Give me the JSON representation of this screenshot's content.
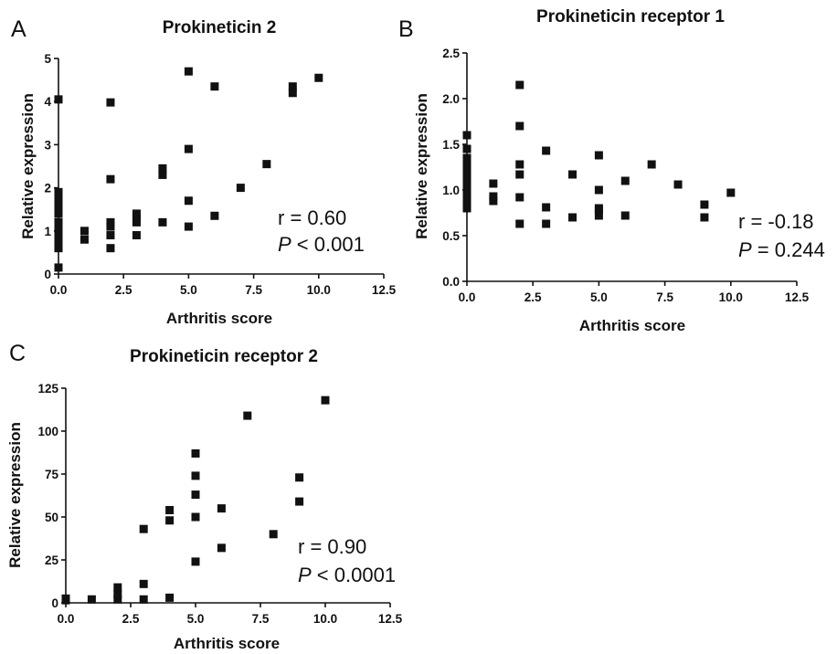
{
  "chart_data": [
    {
      "type": "scatter",
      "panel_letter": "A",
      "title": "Prokineticin 2",
      "xlabel": "Arthritis score",
      "ylabel": "Relative expression",
      "xlim": [
        0,
        12.5
      ],
      "ylim": [
        0,
        5
      ],
      "xticks": [
        "0.0",
        "2.5",
        "5.0",
        "7.5",
        "10.0",
        "12.5"
      ],
      "yticks": [
        "0",
        "1",
        "2",
        "3",
        "4",
        "5"
      ],
      "grid": false,
      "stats": {
        "r": "r = 0.60",
        "p_symbol": "P",
        "p_rest": " < 0.001"
      },
      "points": [
        {
          "x": 0,
          "y": 0.15
        },
        {
          "x": 0,
          "y": 0.6
        },
        {
          "x": 0,
          "y": 0.7
        },
        {
          "x": 0,
          "y": 0.8
        },
        {
          "x": 0,
          "y": 0.9
        },
        {
          "x": 0,
          "y": 1.0
        },
        {
          "x": 0,
          "y": 1.1
        },
        {
          "x": 0,
          "y": 1.2
        },
        {
          "x": 0,
          "y": 1.4
        },
        {
          "x": 0,
          "y": 1.5
        },
        {
          "x": 0,
          "y": 1.6
        },
        {
          "x": 0,
          "y": 1.7
        },
        {
          "x": 0,
          "y": 1.8
        },
        {
          "x": 0,
          "y": 1.9
        },
        {
          "x": 0,
          "y": 4.05
        },
        {
          "x": 1,
          "y": 0.8
        },
        {
          "x": 1,
          "y": 1.0
        },
        {
          "x": 2,
          "y": 0.6
        },
        {
          "x": 2,
          "y": 0.9
        },
        {
          "x": 2,
          "y": 1.1
        },
        {
          "x": 2,
          "y": 1.2
        },
        {
          "x": 2,
          "y": 2.2
        },
        {
          "x": 2,
          "y": 3.98
        },
        {
          "x": 3,
          "y": 0.9
        },
        {
          "x": 3,
          "y": 1.2
        },
        {
          "x": 3,
          "y": 1.3
        },
        {
          "x": 3,
          "y": 1.4
        },
        {
          "x": 4,
          "y": 1.2
        },
        {
          "x": 4,
          "y": 2.3
        },
        {
          "x": 4,
          "y": 2.45
        },
        {
          "x": 5,
          "y": 1.1
        },
        {
          "x": 5,
          "y": 1.7
        },
        {
          "x": 5,
          "y": 2.9
        },
        {
          "x": 5,
          "y": 4.7
        },
        {
          "x": 6,
          "y": 1.35
        },
        {
          "x": 6,
          "y": 4.35
        },
        {
          "x": 7,
          "y": 2.0
        },
        {
          "x": 8,
          "y": 2.55
        },
        {
          "x": 9,
          "y": 4.2
        },
        {
          "x": 9,
          "y": 4.35
        },
        {
          "x": 10,
          "y": 4.55
        }
      ]
    },
    {
      "type": "scatter",
      "panel_letter": "B",
      "title": "Prokineticin receptor 1",
      "xlabel": "Arthritis score",
      "ylabel": "Relative expression",
      "xlim": [
        0,
        12.5
      ],
      "ylim": [
        0,
        2.5
      ],
      "xticks": [
        "0.0",
        "2.5",
        "5.0",
        "7.5",
        "10.0",
        "12.5"
      ],
      "yticks": [
        "0.0",
        "0.5",
        "1.0",
        "1.5",
        "2.0",
        "2.5"
      ],
      "grid": false,
      "stats": {
        "r": "r = -0.18",
        "p_symbol": "P",
        "p_rest": " = 0.244"
      },
      "points": [
        {
          "x": 0,
          "y": 0.8
        },
        {
          "x": 0,
          "y": 0.85
        },
        {
          "x": 0,
          "y": 0.9
        },
        {
          "x": 0,
          "y": 0.95
        },
        {
          "x": 0,
          "y": 1.0
        },
        {
          "x": 0,
          "y": 1.05
        },
        {
          "x": 0,
          "y": 1.1
        },
        {
          "x": 0,
          "y": 1.15
        },
        {
          "x": 0,
          "y": 1.2
        },
        {
          "x": 0,
          "y": 1.25
        },
        {
          "x": 0,
          "y": 1.3
        },
        {
          "x": 0,
          "y": 1.35
        },
        {
          "x": 0,
          "y": 1.45
        },
        {
          "x": 0,
          "y": 1.6
        },
        {
          "x": 1,
          "y": 0.88
        },
        {
          "x": 1,
          "y": 0.93
        },
        {
          "x": 1,
          "y": 1.07
        },
        {
          "x": 2,
          "y": 0.63
        },
        {
          "x": 2,
          "y": 0.92
        },
        {
          "x": 2,
          "y": 1.17
        },
        {
          "x": 2,
          "y": 1.28
        },
        {
          "x": 2,
          "y": 1.7
        },
        {
          "x": 2,
          "y": 2.15
        },
        {
          "x": 3,
          "y": 0.63
        },
        {
          "x": 3,
          "y": 0.81
        },
        {
          "x": 3,
          "y": 1.43
        },
        {
          "x": 4,
          "y": 0.7
        },
        {
          "x": 4,
          "y": 1.17
        },
        {
          "x": 5,
          "y": 0.72
        },
        {
          "x": 5,
          "y": 0.78
        },
        {
          "x": 5,
          "y": 0.8
        },
        {
          "x": 5,
          "y": 1.0
        },
        {
          "x": 5,
          "y": 1.38
        },
        {
          "x": 6,
          "y": 0.72
        },
        {
          "x": 6,
          "y": 1.1
        },
        {
          "x": 7,
          "y": 1.28
        },
        {
          "x": 8,
          "y": 1.06
        },
        {
          "x": 9,
          "y": 0.7
        },
        {
          "x": 9,
          "y": 0.84
        },
        {
          "x": 10,
          "y": 0.97
        }
      ]
    },
    {
      "type": "scatter",
      "panel_letter": "C",
      "title": "Prokineticin receptor 2",
      "xlabel": "Arthritis score",
      "ylabel": "Relative expression",
      "xlim": [
        0,
        12.5
      ],
      "ylim": [
        0,
        125
      ],
      "xticks": [
        "0.0",
        "2.5",
        "5.0",
        "7.5",
        "10.0",
        "12.5"
      ],
      "yticks": [
        "0",
        "25",
        "50",
        "75",
        "100",
        "125"
      ],
      "grid": false,
      "stats": {
        "r": "r = 0.90",
        "p_symbol": "P",
        "p_rest": " < 0.0001"
      },
      "points": [
        {
          "x": 0,
          "y": 1.5
        },
        {
          "x": 0,
          "y": 2.5
        },
        {
          "x": 1,
          "y": 2
        },
        {
          "x": 2,
          "y": 2
        },
        {
          "x": 2,
          "y": 5
        },
        {
          "x": 2,
          "y": 9
        },
        {
          "x": 3,
          "y": 2
        },
        {
          "x": 3,
          "y": 11
        },
        {
          "x": 3,
          "y": 43
        },
        {
          "x": 4,
          "y": 3
        },
        {
          "x": 4,
          "y": 48
        },
        {
          "x": 4,
          "y": 54
        },
        {
          "x": 5,
          "y": 24
        },
        {
          "x": 5,
          "y": 50
        },
        {
          "x": 5,
          "y": 63
        },
        {
          "x": 5,
          "y": 74
        },
        {
          "x": 5,
          "y": 87
        },
        {
          "x": 6,
          "y": 32
        },
        {
          "x": 6,
          "y": 55
        },
        {
          "x": 7,
          "y": 109
        },
        {
          "x": 8,
          "y": 40
        },
        {
          "x": 9,
          "y": 59
        },
        {
          "x": 9,
          "y": 73
        },
        {
          "x": 10,
          "y": 118
        }
      ]
    }
  ]
}
